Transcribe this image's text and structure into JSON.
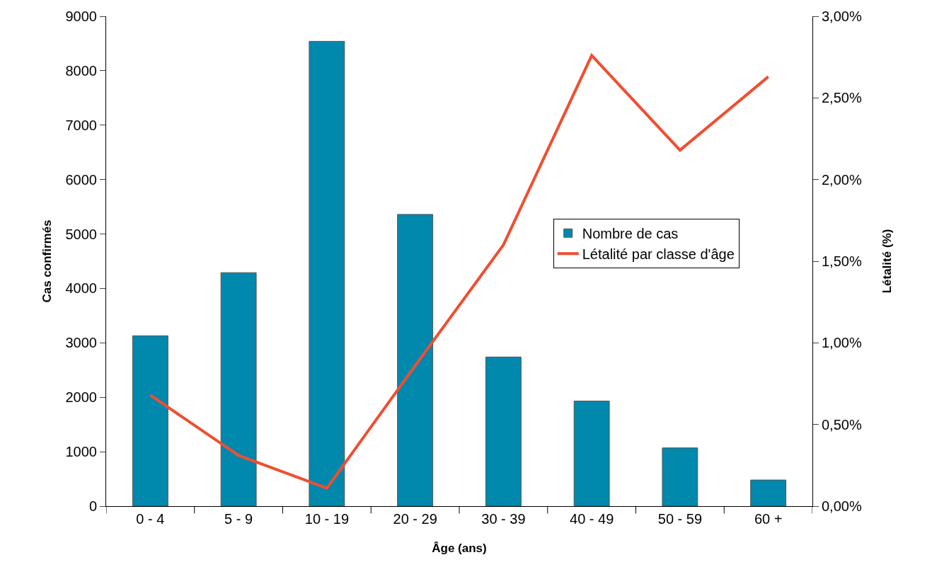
{
  "chart_data": {
    "type": "bar",
    "xlabel": "Âge (ans)",
    "ylabel": "Cas confirmés",
    "y2label": "Létalité (%)",
    "categories": [
      "0 - 4",
      "5 - 9",
      "10 - 19",
      "20 - 29",
      "30 - 39",
      "40 - 49",
      "50 - 59",
      "60 +"
    ],
    "series": [
      {
        "name": "Nombre de cas",
        "color": "#0088ad",
        "values": [
          3130,
          4290,
          8540,
          5360,
          2740,
          1930,
          1070,
          480
        ]
      },
      {
        "name": "Létalité par classe d'âge",
        "type": "line",
        "axis": "y2",
        "color": "#f04e30",
        "values": [
          0.68,
          0.31,
          0.11,
          0.86,
          1.6,
          2.76,
          2.18,
          2.63
        ]
      }
    ],
    "ylim": [
      0,
      9000
    ],
    "yticks": [
      0,
      1000,
      2000,
      3000,
      4000,
      5000,
      6000,
      7000,
      8000,
      9000
    ],
    "y2lim": [
      0,
      3
    ],
    "y2ticks": [
      {
        "value": 0,
        "label": "0,00%"
      },
      {
        "value": 0.5,
        "label": "0,50%"
      },
      {
        "value": 1,
        "label": "1,00%"
      },
      {
        "value": 1.5,
        "label": "1,50%"
      },
      {
        "value": 2,
        "label": "2,00%"
      },
      {
        "value": 2.5,
        "label": "2,50%"
      },
      {
        "value": 3,
        "label": "3,00%"
      }
    ],
    "legend": "right",
    "marker": "none",
    "line_style": "solid"
  }
}
